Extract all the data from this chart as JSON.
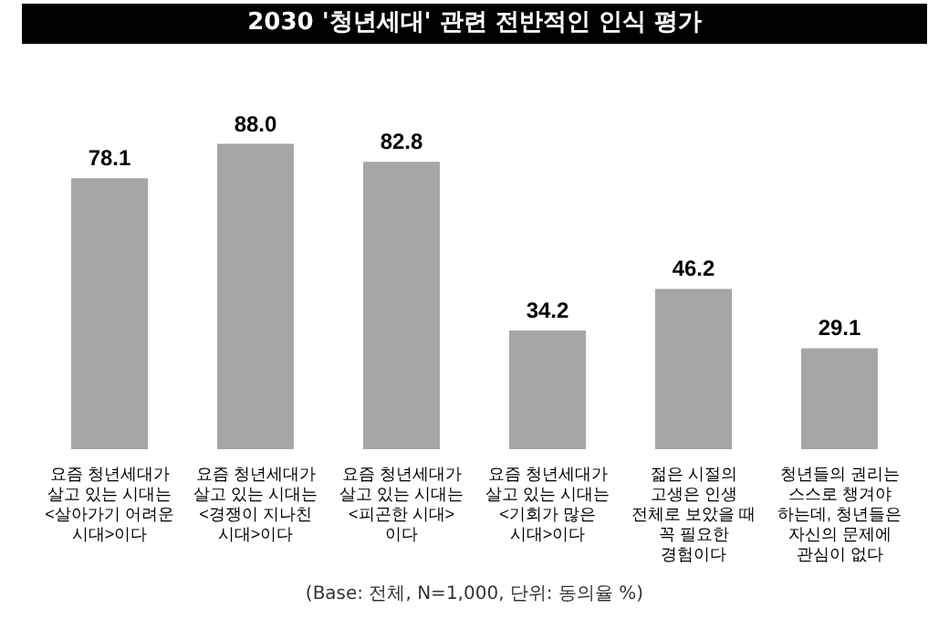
{
  "chart_data": {
    "type": "bar",
    "title": "2030 '청년세대' 관련 전반적인 인식 평가",
    "categories": [
      "요즘 청년세대가\n살고 있는 시대는\n<살아가기 어려운\n시대>이다",
      "요즘 청년세대가\n살고 있는 시대는\n<경쟁이 지나친\n시대>이다",
      "요즘 청년세대가\n살고 있는 시대는\n<피곤한 시대>\n이다",
      "요즘 청년세대가\n살고 있는 시대는\n<기회가 많은\n시대>이다",
      "젊은 시절의\n고생은 인생\n전체로 보았을 때\n꼭 필요한\n경험이다",
      "청년들의 권리는\n스스로 챙겨야\n하는데, 청년들은\n자신의 문제에\n관심이 없다"
    ],
    "values": [
      78.1,
      88.0,
      82.8,
      34.2,
      46.2,
      29.1
    ],
    "color": "#a6a6a6",
    "value_labels": [
      "78.1",
      "88.0",
      "82.8",
      "34.2",
      "46.2",
      "29.1"
    ],
    "annotations": [
      "(Base: 전체, N=1,000, 단위: 동의율 %)"
    ]
  }
}
